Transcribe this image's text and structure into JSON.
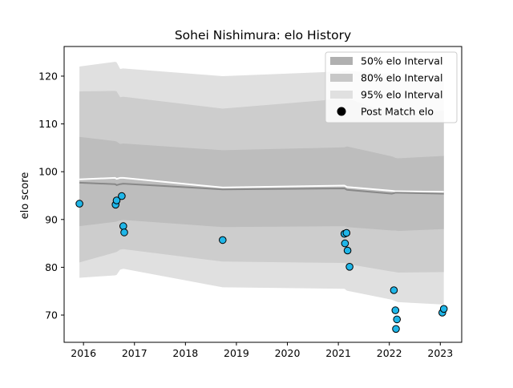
{
  "chart_data": {
    "type": "line",
    "title": "Sohei Nishimura: elo History",
    "xlabel": "",
    "ylabel": "elo score",
    "xlim": [
      2015.62,
      2023.42
    ],
    "ylim": [
      64.3,
      126.2
    ],
    "x_ticks": [
      2016,
      2017,
      2018,
      2019,
      2020,
      2021,
      2022,
      2023
    ],
    "x_tick_labels": [
      "2016",
      "2017",
      "2018",
      "2019",
      "2020",
      "2021",
      "2022",
      "2023"
    ],
    "y_ticks": [
      70,
      80,
      90,
      100,
      110,
      120
    ],
    "y_tick_labels": [
      "70",
      "80",
      "90",
      "100",
      "110",
      "120"
    ],
    "grid": false,
    "legend_position": "top-right",
    "legend": [
      {
        "label": "50% elo Interval",
        "kind": "band",
        "color": "#b0b0b0"
      },
      {
        "label": "80% elo Interval",
        "kind": "band",
        "color": "#c8c8c8"
      },
      {
        "label": "95% elo Interval",
        "kind": "band",
        "color": "#e0e0e0"
      },
      {
        "label": "Post Match elo",
        "kind": "marker",
        "color": "#000000"
      }
    ],
    "series_x": [
      2015.92,
      2016.62,
      2016.65,
      2016.72,
      2016.78,
      2018.73,
      2021.12,
      2021.17,
      2022.05,
      2022.12,
      2022.17,
      2023.07
    ],
    "band_95": {
      "upper": [
        122.0,
        123.0,
        122.9,
        121.5,
        121.6,
        120.0,
        121.0,
        121.1,
        120.5,
        120.2,
        120.0,
        120.0
      ],
      "lower": [
        77.8,
        78.3,
        78.4,
        79.5,
        79.7,
        75.8,
        75.5,
        75.1,
        73.2,
        72.9,
        72.7,
        72.2
      ]
    },
    "band_80": {
      "upper": [
        116.8,
        116.9,
        116.8,
        115.6,
        115.7,
        113.2,
        115.3,
        115.4,
        112.0,
        111.8,
        111.7,
        112.8
      ],
      "lower": [
        81.0,
        83.1,
        83.2,
        83.7,
        83.8,
        81.2,
        80.9,
        80.7,
        79.1,
        79.0,
        78.9,
        79.0
      ]
    },
    "band_50": {
      "upper": [
        107.3,
        106.4,
        106.3,
        105.8,
        105.9,
        104.5,
        105.1,
        105.3,
        103.2,
        102.9,
        102.8,
        103.3
      ],
      "lower": [
        88.6,
        89.5,
        89.6,
        89.8,
        89.9,
        88.4,
        88.6,
        88.4,
        87.7,
        87.7,
        87.6,
        88.0
      ]
    },
    "mean_line": [
      97.7,
      97.4,
      97.2,
      97.4,
      97.5,
      96.3,
      96.5,
      96.2,
      95.4,
      95.6,
      95.6,
      95.4
    ],
    "upper_line": [
      98.4,
      98.7,
      98.5,
      98.7,
      98.7,
      96.7,
      97.1,
      96.8,
      96.0,
      95.9,
      95.9,
      95.8
    ],
    "points": [
      {
        "x": 2015.92,
        "y": 93.3
      },
      {
        "x": 2016.63,
        "y": 93.1
      },
      {
        "x": 2016.65,
        "y": 94.0
      },
      {
        "x": 2016.75,
        "y": 94.9
      },
      {
        "x": 2016.78,
        "y": 88.6
      },
      {
        "x": 2016.8,
        "y": 87.3
      },
      {
        "x": 2018.73,
        "y": 85.7
      },
      {
        "x": 2021.12,
        "y": 87.0
      },
      {
        "x": 2021.16,
        "y": 87.2
      },
      {
        "x": 2021.13,
        "y": 85.0
      },
      {
        "x": 2021.18,
        "y": 83.5
      },
      {
        "x": 2021.22,
        "y": 80.1
      },
      {
        "x": 2022.09,
        "y": 75.2
      },
      {
        "x": 2022.12,
        "y": 71.0
      },
      {
        "x": 2022.15,
        "y": 69.1
      },
      {
        "x": 2022.13,
        "y": 67.1
      },
      {
        "x": 2023.04,
        "y": 70.5
      },
      {
        "x": 2023.07,
        "y": 71.3
      }
    ],
    "colors": {
      "band_95": "#e0e0e0",
      "band_80": "#cdcdcd",
      "band_50": "#bdbdbd",
      "mean_line": "#888888",
      "upper_line": "#ffffff",
      "point_fill": "#1fb6e8",
      "point_edge": "#000000"
    }
  }
}
